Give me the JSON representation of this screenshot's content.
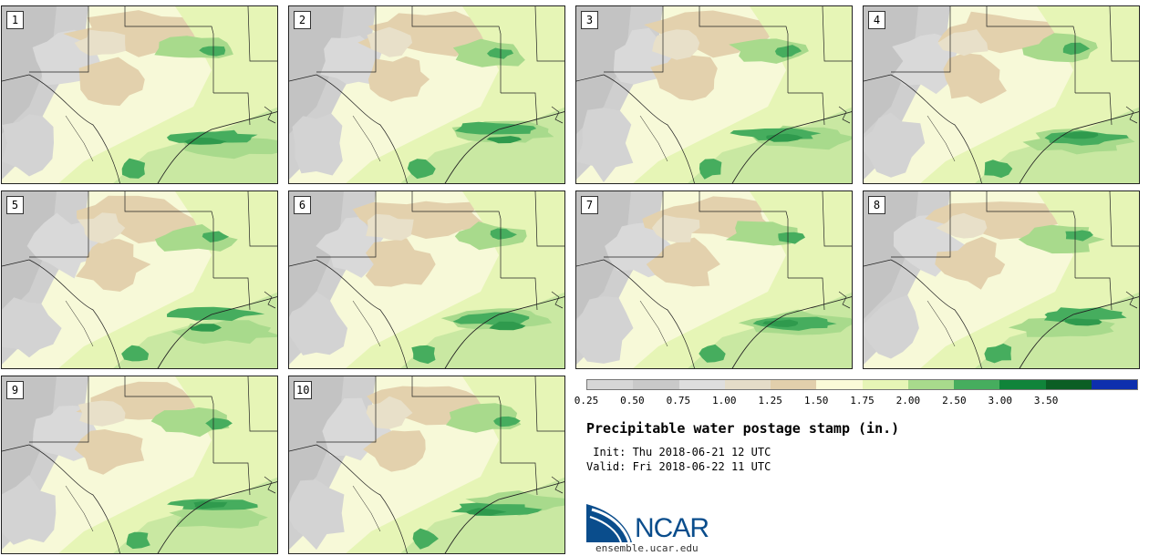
{
  "map": {
    "title": "Precipitable water postage stamp (in.)",
    "init_text": " Init: Thu 2018-06-21 12 UTC",
    "valid_text": "Valid: Fri 2018-06-22 11 UTC",
    "website": "ensemble.ucar.edu",
    "logo_text": "NCAR",
    "panel_labels": [
      "1",
      "2",
      "3",
      "4",
      "5",
      "6",
      "7",
      "8",
      "9",
      "10"
    ]
  },
  "colorbar": {
    "tick_labels": [
      "0.25",
      "0.50",
      "0.75",
      "1.00",
      "1.25",
      "1.50",
      "1.75",
      "2.00",
      "2.50",
      "3.00",
      "3.50"
    ],
    "colors": [
      "#d6d6d6",
      "#c9c9c9",
      "#dedede",
      "#e4dcc8",
      "#e2cfac",
      "#fbfbd8",
      "#e6f5b6",
      "#a8da8c",
      "#46ad5e",
      "#10843a",
      "#0b5e24",
      "#0d2fae"
    ]
  }
}
